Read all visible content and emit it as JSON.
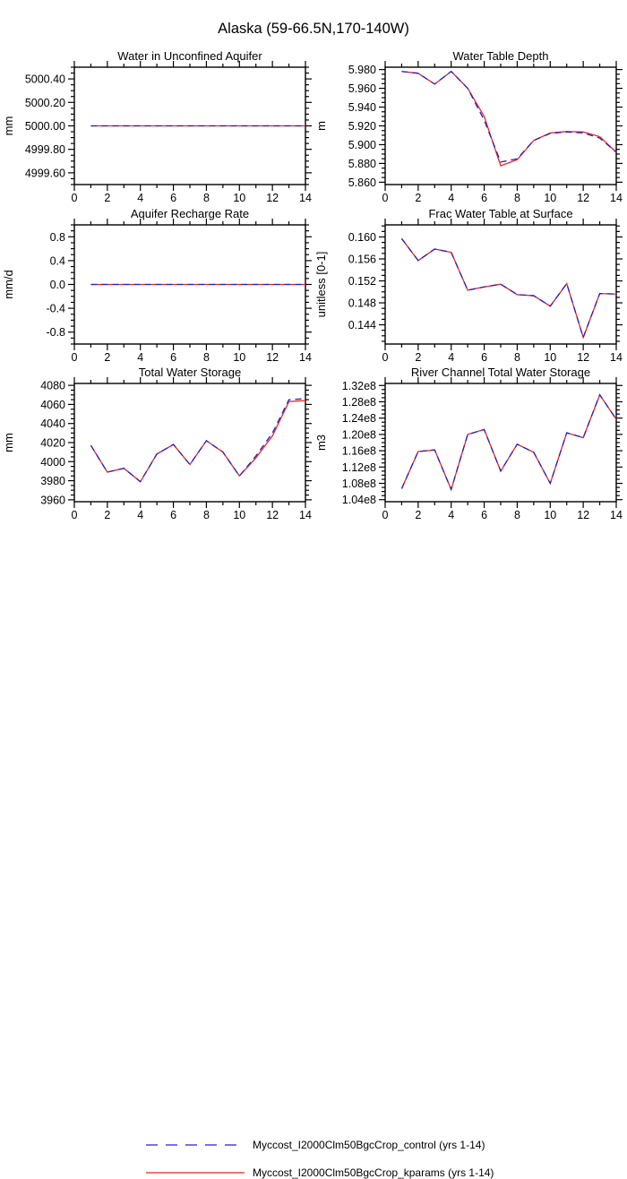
{
  "page_title": "Alaska (59-66.5N,170-140W)",
  "legend": {
    "items": [
      {
        "label": "Myccost_I2000Clm50BgcCrop_control (yrs 1-14)",
        "series": "control",
        "color": "#2222cc",
        "style": "dashed"
      },
      {
        "label": "Myccost_I2000Clm50BgcCrop_kparams (yrs 1-14)",
        "series": "kparams",
        "color": "#ee2222",
        "style": "solid"
      }
    ]
  },
  "chart_data": [
    {
      "type": "line",
      "title": "Water in Unconfined Aquifer",
      "ylabel": "mm",
      "x": [
        1,
        2,
        3,
        4,
        5,
        6,
        7,
        8,
        9,
        10,
        11,
        12,
        13,
        14
      ],
      "xlim": [
        0,
        14
      ],
      "xticks": [
        0,
        2,
        4,
        6,
        8,
        10,
        12,
        14
      ],
      "xtick_labels": [
        "0",
        "2",
        "4",
        "6",
        "8",
        "10",
        "12",
        "14"
      ],
      "x_minor_step": 1,
      "ylim": [
        4999.5,
        5000.5
      ],
      "yticks": [
        4999.6,
        4999.8,
        5000.0,
        5000.2,
        5000.4
      ],
      "ytick_labels": [
        "4999.60",
        "4999.80",
        "5000.00",
        "5000.20",
        "5000.40"
      ],
      "y_minor_step": 0.05,
      "series": [
        {
          "name": "control",
          "values": [
            5000,
            5000,
            5000,
            5000,
            5000,
            5000,
            5000,
            5000,
            5000,
            5000,
            5000,
            5000,
            5000,
            5000
          ]
        },
        {
          "name": "kparams",
          "values": [
            5000,
            5000,
            5000,
            5000,
            5000,
            5000,
            5000,
            5000,
            5000,
            5000,
            5000,
            5000,
            5000,
            5000
          ]
        }
      ]
    },
    {
      "type": "line",
      "title": "Water Table Depth",
      "ylabel": "m",
      "x": [
        1,
        2,
        3,
        4,
        5,
        6,
        7,
        8,
        9,
        10,
        11,
        12,
        13,
        14
      ],
      "xlim": [
        0,
        14
      ],
      "xticks": [
        0,
        2,
        4,
        6,
        8,
        10,
        12,
        14
      ],
      "xtick_labels": [
        "0",
        "2",
        "4",
        "6",
        "8",
        "10",
        "12",
        "14"
      ],
      "x_minor_step": 1,
      "ylim": [
        5.8575,
        5.9825
      ],
      "yticks": [
        5.86,
        5.88,
        5.9,
        5.92,
        5.94,
        5.96,
        5.98
      ],
      "ytick_labels": [
        "5.860",
        "5.880",
        "5.900",
        "5.920",
        "5.940",
        "5.960",
        "5.980"
      ],
      "y_minor_step": 0.005,
      "series": [
        {
          "name": "control",
          "values": [
            5.978,
            5.976,
            5.9645,
            5.978,
            5.96,
            5.926,
            5.8815,
            5.885,
            5.9045,
            5.912,
            5.9135,
            5.9125,
            5.907,
            5.892
          ]
        },
        {
          "name": "kparams",
          "values": [
            5.978,
            5.976,
            5.9645,
            5.978,
            5.96,
            5.93,
            5.8775,
            5.884,
            5.9045,
            5.9125,
            5.914,
            5.9135,
            5.9085,
            5.892
          ]
        }
      ]
    },
    {
      "type": "line",
      "title": "Aquifer Recharge Rate",
      "ylabel": "mm/d",
      "x": [
        1,
        2,
        3,
        4,
        5,
        6,
        7,
        8,
        9,
        10,
        11,
        12,
        13,
        14
      ],
      "xlim": [
        0,
        14
      ],
      "xticks": [
        0,
        2,
        4,
        6,
        8,
        10,
        12,
        14
      ],
      "xtick_labels": [
        "0",
        "2",
        "4",
        "6",
        "8",
        "10",
        "12",
        "14"
      ],
      "x_minor_step": 1,
      "ylim": [
        -1,
        1
      ],
      "yticks": [
        -0.8,
        -0.4,
        0,
        0.4,
        0.8
      ],
      "ytick_labels": [
        "-0.8",
        "-0.4",
        "0.0",
        "0.4",
        "0.8"
      ],
      "y_minor_step": 0.1,
      "series": [
        {
          "name": "control",
          "values": [
            0,
            0,
            0,
            0,
            0,
            0,
            0,
            0,
            0,
            0,
            0,
            0,
            0,
            0
          ]
        },
        {
          "name": "kparams",
          "values": [
            0,
            0,
            0,
            0,
            0,
            0,
            0,
            0,
            0,
            0,
            0,
            0,
            0,
            0
          ]
        }
      ]
    },
    {
      "type": "line",
      "title": "Frac Water Table at Surface",
      "ylabel": "unitless [0-1]",
      "x": [
        1,
        2,
        3,
        4,
        5,
        6,
        7,
        8,
        9,
        10,
        11,
        12,
        13,
        14
      ],
      "xlim": [
        0,
        14
      ],
      "xticks": [
        0,
        2,
        4,
        6,
        8,
        10,
        12,
        14
      ],
      "xtick_labels": [
        "0",
        "2",
        "4",
        "6",
        "8",
        "10",
        "12",
        "14"
      ],
      "x_minor_step": 1,
      "ylim": [
        0.1405,
        0.1622
      ],
      "yticks": [
        0.144,
        0.148,
        0.152,
        0.156,
        0.16
      ],
      "ytick_labels": [
        "0.144",
        "0.148",
        "0.152",
        "0.156",
        "0.160"
      ],
      "y_minor_step": 0.001,
      "series": [
        {
          "name": "control",
          "values": [
            0.1597,
            0.1557,
            0.1578,
            0.1572,
            0.1503,
            0.1509,
            0.1514,
            0.1495,
            0.1493,
            0.1474,
            0.1515,
            0.1417,
            0.1497,
            0.1496
          ]
        },
        {
          "name": "kparams",
          "values": [
            0.1597,
            0.1557,
            0.1578,
            0.1572,
            0.1503,
            0.1509,
            0.1514,
            0.1495,
            0.1493,
            0.1474,
            0.1515,
            0.1417,
            0.1497,
            0.1496
          ]
        }
      ]
    },
    {
      "type": "line",
      "title": "Total Water Storage",
      "ylabel": "mm",
      "x": [
        1,
        2,
        3,
        4,
        5,
        6,
        7,
        8,
        9,
        10,
        11,
        12,
        13,
        14
      ],
      "xlim": [
        0,
        14
      ],
      "xticks": [
        0,
        2,
        4,
        6,
        8,
        10,
        12,
        14
      ],
      "xtick_labels": [
        "0",
        "2",
        "4",
        "6",
        "8",
        "10",
        "12",
        "14"
      ],
      "x_minor_step": 1,
      "ylim": [
        3958,
        4082
      ],
      "yticks": [
        3960,
        3980,
        4000,
        4020,
        4040,
        4060,
        4080
      ],
      "ytick_labels": [
        "3960",
        "3980",
        "4000",
        "4020",
        "4040",
        "4060",
        "4080"
      ],
      "y_minor_step": 5,
      "series": [
        {
          "name": "control",
          "values": [
            4017,
            3989,
            3993,
            3979,
            4008,
            4018,
            3997,
            4022,
            4010,
            3985,
            4006,
            4030,
            4065,
            4066
          ]
        },
        {
          "name": "kparams",
          "values": [
            4017,
            3989,
            3993,
            3979,
            4008,
            4018,
            3997,
            4022,
            4010,
            3985,
            4004,
            4027,
            4063,
            4064
          ]
        }
      ]
    },
    {
      "type": "line",
      "title": "River Channel Total Water Storage",
      "ylabel": "m3",
      "x": [
        1,
        2,
        3,
        4,
        5,
        6,
        7,
        8,
        9,
        10,
        11,
        12,
        13,
        14
      ],
      "xlim": [
        0,
        14
      ],
      "xticks": [
        0,
        2,
        4,
        6,
        8,
        10,
        12,
        14
      ],
      "xtick_labels": [
        "0",
        "2",
        "4",
        "6",
        "8",
        "10",
        "12",
        "14"
      ],
      "x_minor_step": 1,
      "ylim": [
        103500000,
        132500000
      ],
      "yticks": [
        104000000,
        108000000,
        112000000,
        116000000,
        120000000,
        124000000,
        128000000,
        132000000
      ],
      "ytick_labels": [
        "1.04e8",
        "1.08e8",
        "1.12e8",
        "1.16e8",
        "1.20e8",
        "1.24e8",
        "1.28e8",
        "1.32e8"
      ],
      "y_minor_step": 1000000,
      "series": [
        {
          "name": "control",
          "values": [
            106700000,
            115800000,
            116200000,
            106500000,
            120000000,
            121200000,
            111000000,
            117600000,
            115600000,
            108000000,
            120400000,
            119200000,
            129700000,
            123700000
          ]
        },
        {
          "name": "kparams",
          "values": [
            106700000,
            115800000,
            116200000,
            106500000,
            120000000,
            121200000,
            111000000,
            117600000,
            115600000,
            108000000,
            120400000,
            119200000,
            129700000,
            123700000
          ]
        }
      ]
    }
  ]
}
